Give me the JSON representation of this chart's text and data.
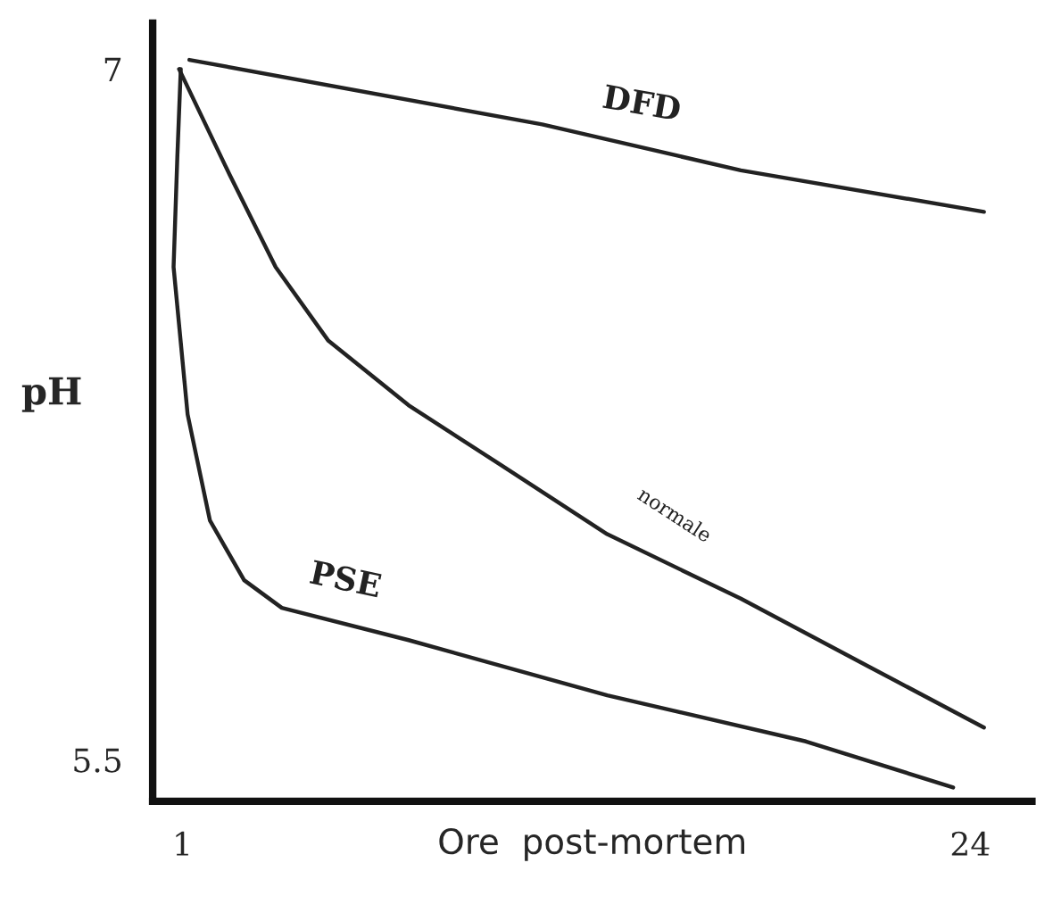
{
  "chart_data": {
    "type": "line",
    "xlabel": "Ore  post-mortem",
    "ylabel": "pH",
    "xlim": [
      0.13,
      25.8
    ],
    "ylim": [
      5.41,
      7.1
    ],
    "xticks": [
      1,
      24
    ],
    "yticks": [
      7,
      5.5
    ],
    "grid": false,
    "legend": false,
    "marker": "none",
    "line_style": "solid",
    "series": [
      {
        "name": "DFD",
        "color": "#222222",
        "x": [
          1.2,
          11.5,
          17.3,
          24.4
        ],
        "values": [
          7.02,
          6.88,
          6.78,
          6.69
        ]
      },
      {
        "name": "normale",
        "color": "#222222",
        "x": [
          0.9,
          2.38,
          3.72,
          5.26,
          7.6,
          10.3,
          13.4,
          17.3,
          21.1,
          24.4
        ],
        "values": [
          7.0,
          6.77,
          6.57,
          6.41,
          6.27,
          6.14,
          5.99,
          5.85,
          5.7,
          5.57
        ]
      },
      {
        "name": "PSE",
        "color": "#222222",
        "x": [
          0.95,
          0.85,
          0.74,
          1.15,
          1.8,
          2.8,
          3.9,
          7.6,
          13.4,
          19.2,
          23.5
        ],
        "values": [
          7.0,
          6.81,
          6.57,
          6.25,
          6.02,
          5.89,
          5.83,
          5.76,
          5.64,
          5.54,
          5.44
        ]
      }
    ]
  }
}
